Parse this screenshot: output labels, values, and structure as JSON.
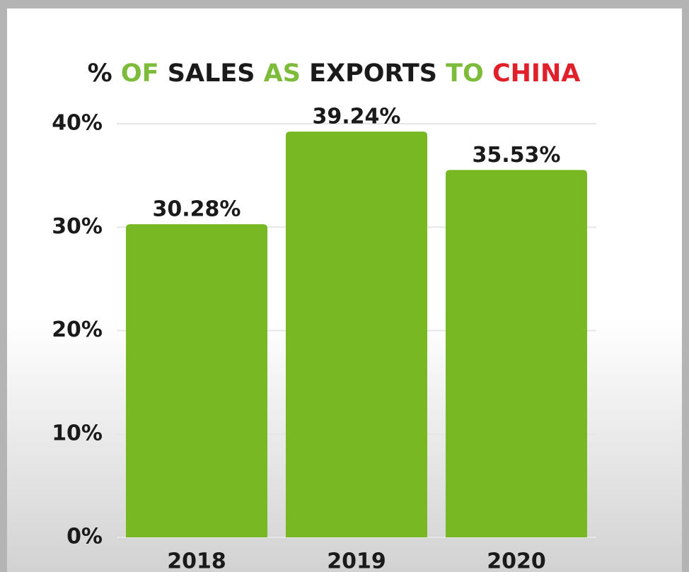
{
  "chart_data": {
    "type": "bar",
    "title": "% OF SALES AS EXPORTS TO CHINA",
    "title_word_colors": [
      "#1a1a1a",
      "#7cbc3a",
      "#1a1a1a",
      "#7cbc3a",
      "#1a1a1a",
      "#7cbc3a",
      "#e0202a"
    ],
    "categories": [
      "2018",
      "2019",
      "2020"
    ],
    "values": [
      30.28,
      39.24,
      35.53
    ],
    "value_labels": [
      "30.28%",
      "39.24%",
      "35.53%"
    ],
    "color": "#78b823",
    "ylim": [
      0,
      40
    ],
    "yticks": [
      {
        "value": 0,
        "label": "0%"
      },
      {
        "value": 10,
        "label": "10%"
      },
      {
        "value": 20,
        "label": "20%"
      },
      {
        "value": 30,
        "label": "30%"
      },
      {
        "value": 40,
        "label": "40%"
      }
    ],
    "grid": true
  }
}
